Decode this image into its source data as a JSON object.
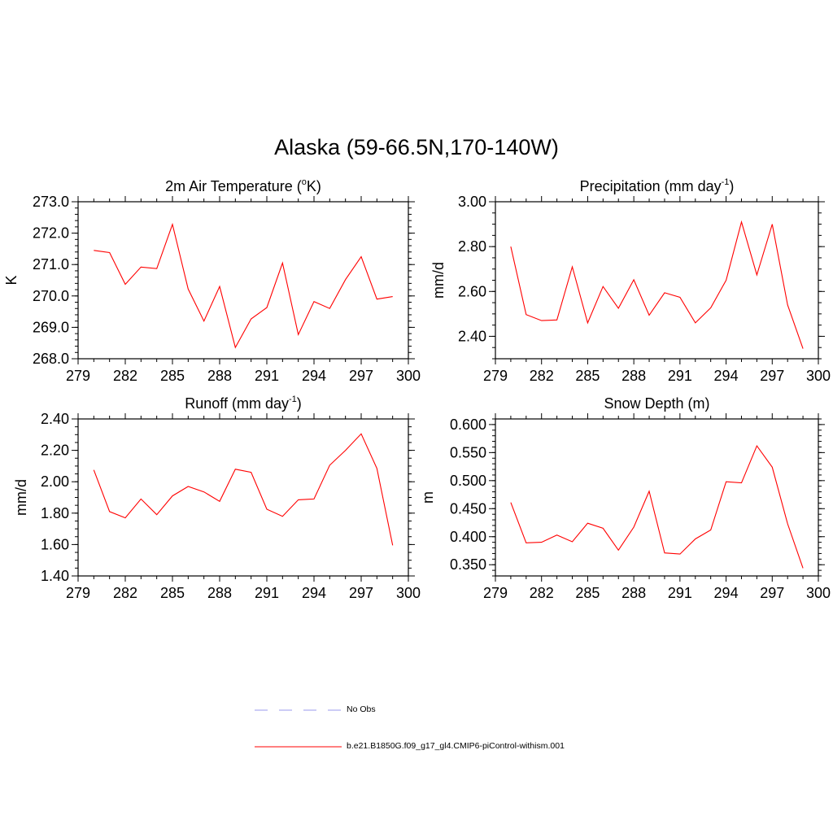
{
  "title": "Alaska (59-66.5N,170-140W)",
  "legend": {
    "entries": [
      {
        "label": "No Obs",
        "color": "#9999ee",
        "style": "dashed"
      },
      {
        "label": "b.e21.B1850G.f09_g17_gl4.CMIP6-piControl-withism.001",
        "color": "#ff0000",
        "style": "solid"
      }
    ]
  },
  "chart_data": [
    {
      "type": "line",
      "title": "2m Air Temperature (°K)",
      "title_base": "2m Air Temperature (",
      "title_sup": "o",
      "title_tail": "K)",
      "xlabel": "",
      "ylabel": "K",
      "xlim": [
        279,
        300
      ],
      "ylim": [
        268,
        273
      ],
      "xticks": [
        279,
        282,
        285,
        288,
        291,
        294,
        297,
        300
      ],
      "yticks": [
        "268.0",
        "269.0",
        "270.0",
        "271.0",
        "272.0",
        "273.0"
      ],
      "ytick_values": [
        268,
        269,
        270,
        271,
        272,
        273
      ],
      "yminor": 0.2,
      "color": "#ff0000",
      "x": [
        280,
        281,
        282,
        283,
        284,
        285,
        286,
        287,
        288,
        289,
        290,
        291,
        292,
        293,
        294,
        295,
        296,
        297,
        298,
        299
      ],
      "y": [
        271.45,
        271.38,
        270.37,
        270.92,
        270.87,
        272.28,
        270.22,
        269.2,
        270.3,
        268.36,
        269.27,
        269.63,
        271.05,
        268.77,
        269.82,
        269.6,
        270.52,
        271.25,
        269.9,
        269.98
      ]
    },
    {
      "type": "line",
      "title": "Precipitation (mm day-1)",
      "title_base": "Precipitation (mm day",
      "title_sup": "-1",
      "title_tail": ")",
      "xlabel": "",
      "ylabel": "mm/d",
      "xlim": [
        279,
        300
      ],
      "ylim": [
        2.3,
        3.0
      ],
      "xticks": [
        279,
        282,
        285,
        288,
        291,
        294,
        297,
        300
      ],
      "yticks": [
        "2.40",
        "2.60",
        "2.80",
        "3.00"
      ],
      "ytick_values": [
        2.4,
        2.6,
        2.8,
        3.0
      ],
      "yminor": 0.05,
      "color": "#ff0000",
      "x": [
        280,
        281,
        282,
        283,
        284,
        285,
        286,
        287,
        288,
        289,
        290,
        291,
        292,
        293,
        294,
        295,
        296,
        297,
        298,
        299
      ],
      "y": [
        2.8,
        2.497,
        2.47,
        2.473,
        2.71,
        2.46,
        2.622,
        2.525,
        2.652,
        2.494,
        2.594,
        2.574,
        2.46,
        2.527,
        2.65,
        2.91,
        2.674,
        2.9,
        2.54,
        2.345
      ]
    },
    {
      "type": "line",
      "title": "Runoff (mm day-1)",
      "title_base": "Runoff (mm day",
      "title_sup": "-1",
      "title_tail": ")",
      "xlabel": "",
      "ylabel": "mm/d",
      "xlim": [
        279,
        300
      ],
      "ylim": [
        1.4,
        2.4
      ],
      "xticks": [
        279,
        282,
        285,
        288,
        291,
        294,
        297,
        300
      ],
      "yticks": [
        "1.40",
        "1.60",
        "1.80",
        "2.00",
        "2.20",
        "2.40"
      ],
      "ytick_values": [
        1.4,
        1.6,
        1.8,
        2.0,
        2.2,
        2.4
      ],
      "yminor": 0.05,
      "color": "#ff0000",
      "x": [
        280,
        281,
        282,
        283,
        284,
        285,
        286,
        287,
        288,
        289,
        290,
        291,
        292,
        293,
        294,
        295,
        296,
        297,
        298,
        299
      ],
      "y": [
        2.075,
        1.81,
        1.77,
        1.89,
        1.79,
        1.91,
        1.97,
        1.935,
        1.875,
        2.08,
        2.06,
        1.825,
        1.78,
        1.885,
        1.89,
        2.105,
        2.2,
        2.305,
        2.085,
        1.595
      ]
    },
    {
      "type": "line",
      "title": "Snow Depth (m)",
      "title_base": "Snow Depth (m)",
      "title_sup": "",
      "title_tail": "",
      "xlabel": "",
      "ylabel": "m",
      "xlim": [
        279,
        300
      ],
      "ylim": [
        0.33,
        0.61
      ],
      "xticks": [
        279,
        282,
        285,
        288,
        291,
        294,
        297,
        300
      ],
      "yticks": [
        "0.350",
        "0.400",
        "0.450",
        "0.500",
        "0.550",
        "0.600"
      ],
      "ytick_values": [
        0.35,
        0.4,
        0.45,
        0.5,
        0.55,
        0.6
      ],
      "yminor": 0.01,
      "color": "#ff0000",
      "x": [
        280,
        281,
        282,
        283,
        284,
        285,
        286,
        287,
        288,
        289,
        290,
        291,
        292,
        293,
        294,
        295,
        296,
        297,
        298,
        299
      ],
      "y": [
        0.461,
        0.389,
        0.39,
        0.403,
        0.391,
        0.424,
        0.415,
        0.376,
        0.417,
        0.481,
        0.371,
        0.369,
        0.396,
        0.412,
        0.498,
        0.496,
        0.562,
        0.524,
        0.423,
        0.344
      ]
    }
  ]
}
